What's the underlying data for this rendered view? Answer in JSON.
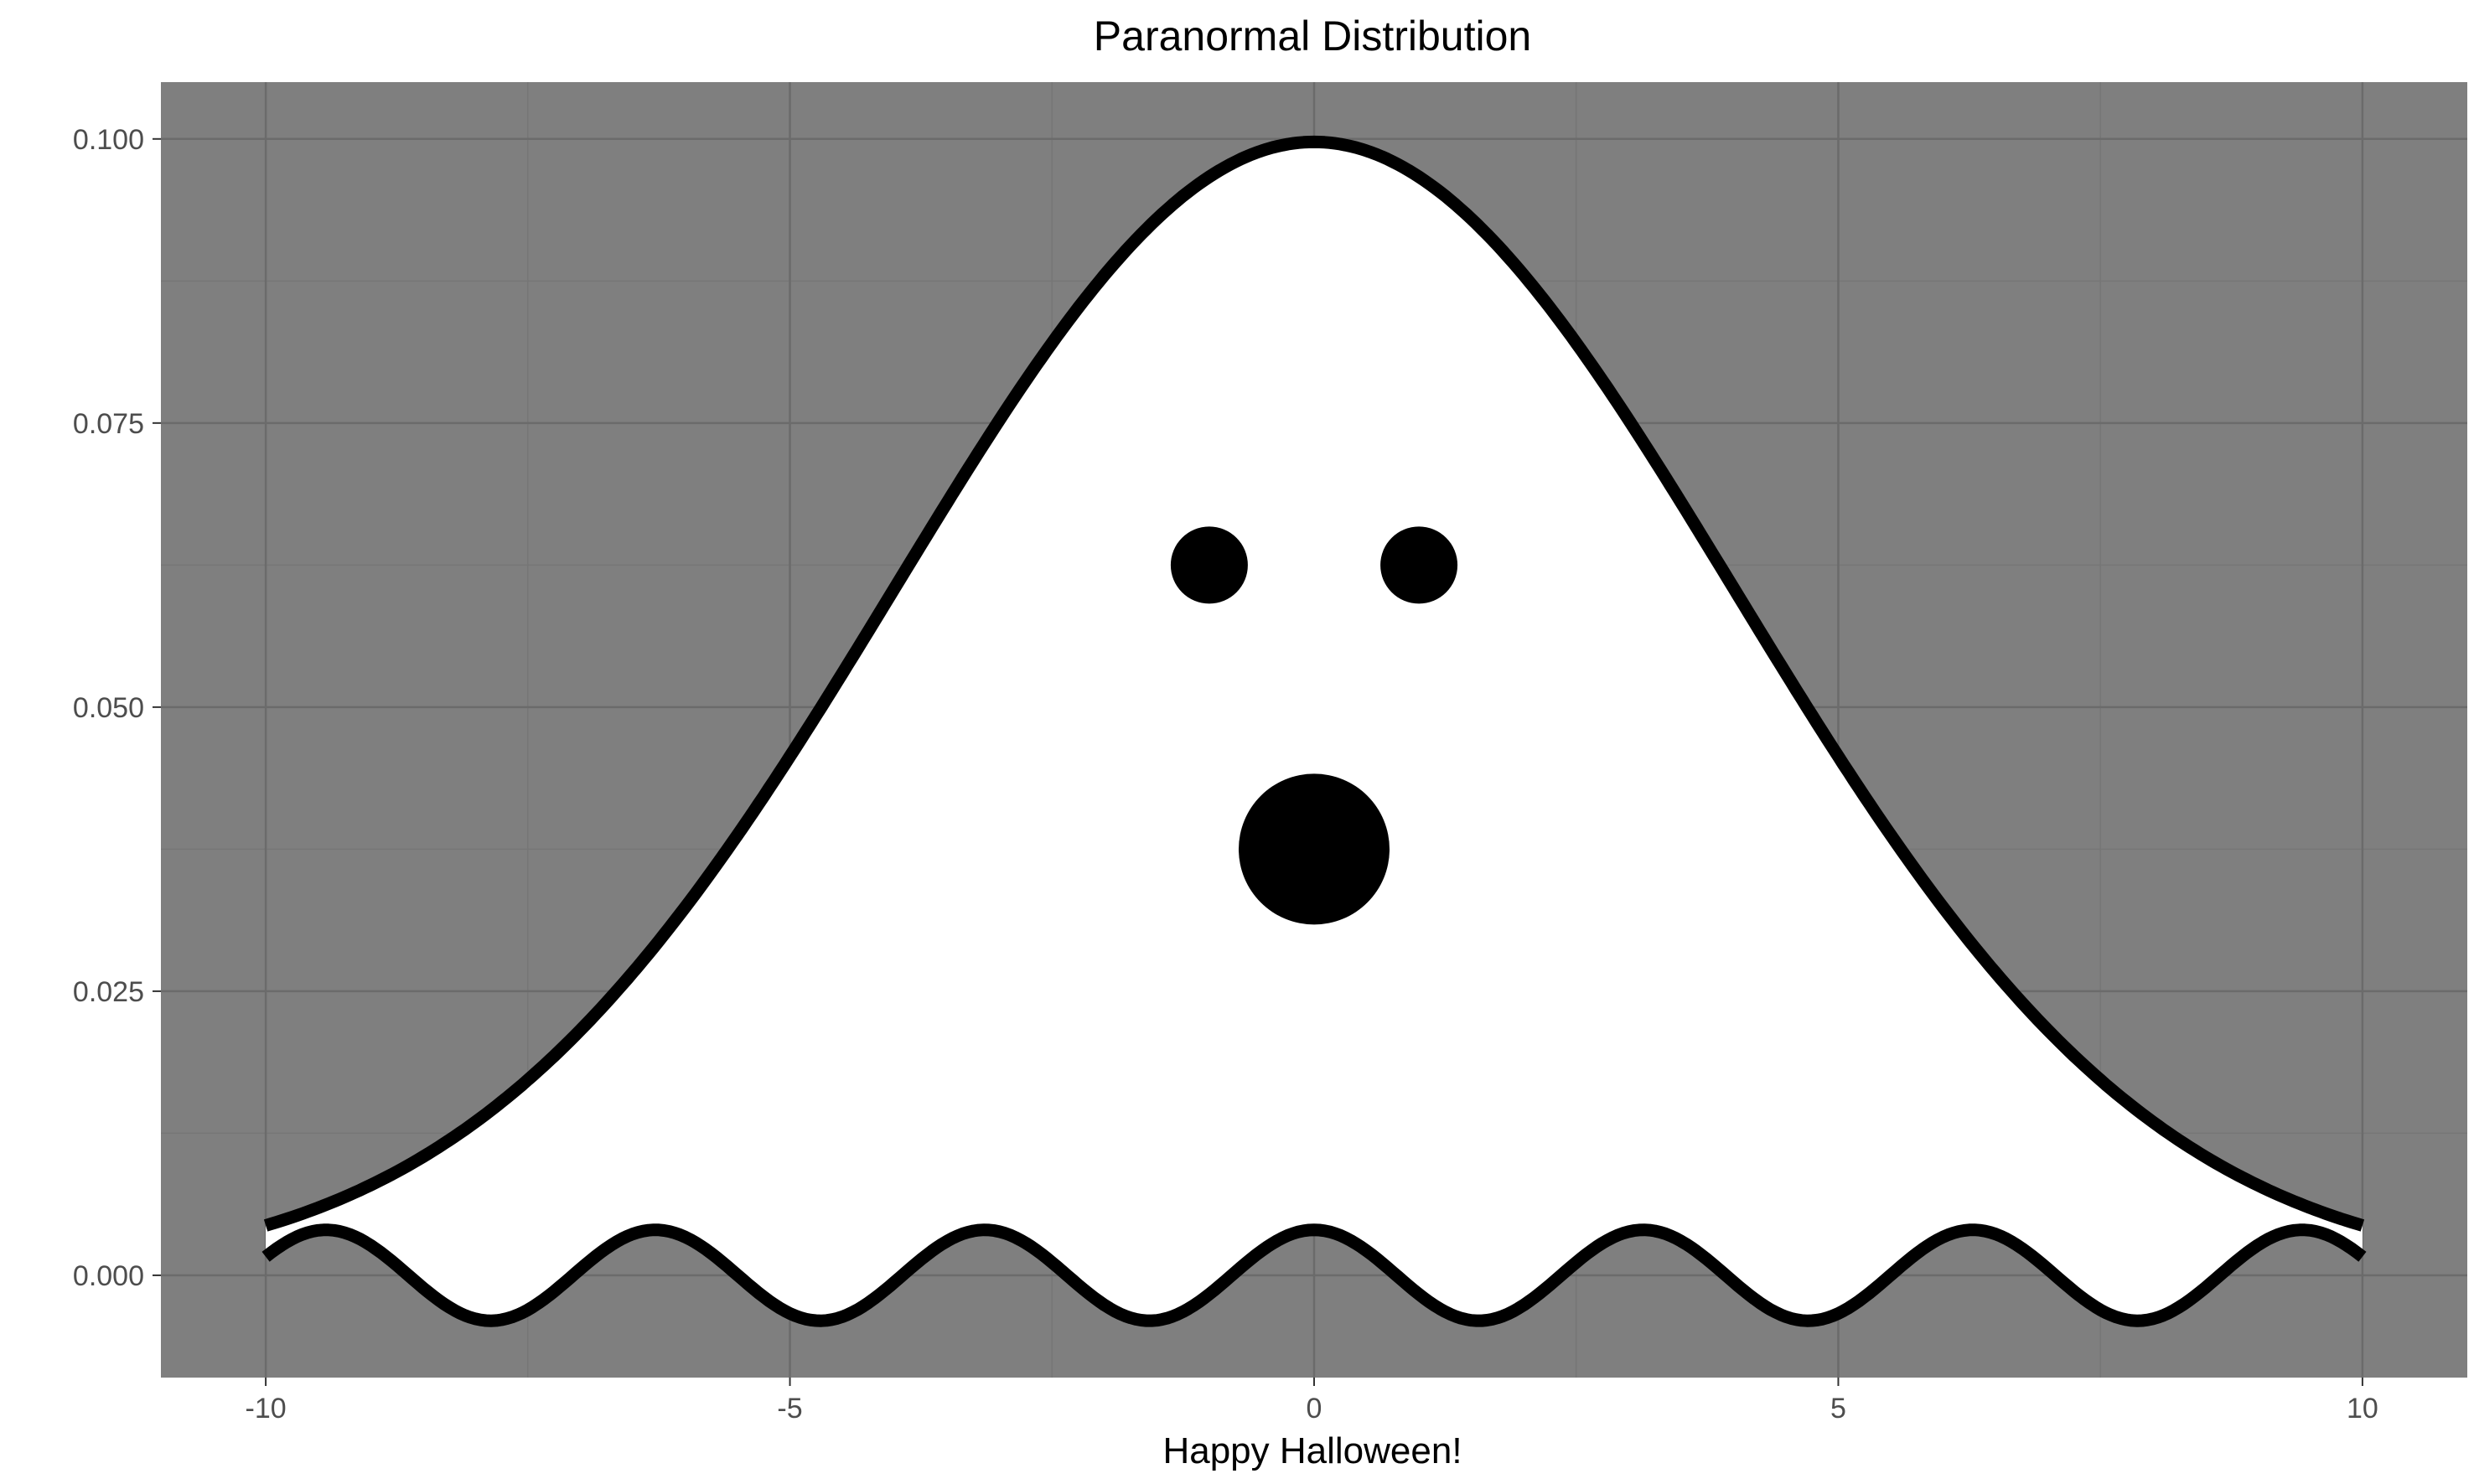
{
  "chart_data": {
    "type": "line",
    "title": "Paranormal Distribution",
    "subtitle": "",
    "xlabel": "Happy Halloween!",
    "ylabel": "",
    "xlim": [
      -11,
      11
    ],
    "ylim": [
      -0.009,
      0.105
    ],
    "x_ticks": [
      -10,
      -5,
      0,
      5,
      10
    ],
    "x_tick_labels": [
      "-10",
      "-5",
      "0",
      "5",
      "10"
    ],
    "y_ticks": [
      0.0,
      0.025,
      0.05,
      0.075,
      0.1
    ],
    "y_tick_labels": [
      "0.000",
      "0.025",
      "0.050",
      "0.075",
      "0.100"
    ],
    "grid": true,
    "legend": "none",
    "series": [
      {
        "role": "ghost-body",
        "function": "normal density, mean 0, sd 4",
        "x": [
          -10,
          -9,
          -8,
          -7,
          -6,
          -5,
          -4,
          -3,
          -2,
          -1,
          0,
          1,
          2,
          3,
          4,
          5,
          6,
          7,
          8,
          9,
          10
        ],
        "values": [
          0.0044,
          0.0079,
          0.0135,
          0.0216,
          0.0324,
          0.0457,
          0.0605,
          0.0753,
          0.088,
          0.0967,
          0.0997,
          0.0967,
          0.088,
          0.0753,
          0.0605,
          0.0457,
          0.0324,
          0.0216,
          0.0135,
          0.0079,
          0.0044
        ]
      },
      {
        "role": "ghost-hem",
        "function": "0.004 * cos(2x)",
        "amplitude": 0.004,
        "frequency": 2,
        "x_range": [
          -10,
          10
        ]
      }
    ],
    "points": [
      {
        "role": "left-eye",
        "x": -1,
        "y": 0.0625,
        "size": "small"
      },
      {
        "role": "right-eye",
        "x": 1,
        "y": 0.0625,
        "size": "small"
      },
      {
        "role": "mouth",
        "x": 0,
        "y": 0.0375,
        "size": "large"
      }
    ],
    "colors": {
      "panel_background": "#7f7f7f",
      "grid_major": "#6b6b6b",
      "grid_minor": "#767676",
      "ghost_fill": "#ffffff",
      "ghost_outline": "#000000",
      "text": "#000000",
      "tick_text": "#4d4d4d"
    }
  }
}
